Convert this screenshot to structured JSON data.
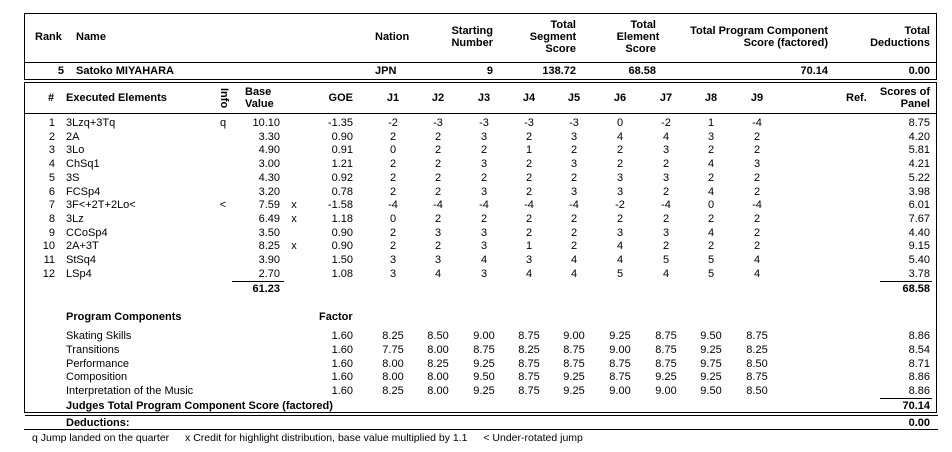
{
  "top_header": {
    "rank": "Rank",
    "name": "Name",
    "nation": "Nation",
    "starting_number": [
      "Starting",
      "Number"
    ],
    "tss": [
      "Total",
      "Segment",
      "Score"
    ],
    "tes": [
      "Total",
      "Element",
      "Score"
    ],
    "pcs": [
      "Total Program Component",
      "Score (factored)"
    ],
    "ded": [
      "Total",
      "Deductions"
    ]
  },
  "skater": {
    "rank": "5",
    "name": "Satoko MIYAHARA",
    "nation": "JPN",
    "starting_number": "9",
    "tss": "138.72",
    "tes": "68.58",
    "pcs": "70.14",
    "ded": "0.00"
  },
  "elements_header": {
    "num": "#",
    "executed": "Executed Elements",
    "info": "Info",
    "base": [
      "Base",
      "Value"
    ],
    "goe": "GOE",
    "judges": [
      "J1",
      "J2",
      "J3",
      "J4",
      "J5",
      "J6",
      "J7",
      "J8",
      "J9"
    ],
    "ref": "Ref.",
    "panel": [
      "Scores of",
      "Panel"
    ]
  },
  "elements": [
    {
      "n": "1",
      "el": "3Lzq+3Tq",
      "info": "q",
      "bv": "10.10",
      "x": "",
      "goe": "-1.35",
      "j": [
        "-2",
        "-3",
        "-3",
        "-3",
        "-3",
        "0",
        "-2",
        "1",
        "-4"
      ],
      "panel": "8.75"
    },
    {
      "n": "2",
      "el": "2A",
      "info": "",
      "bv": "3.30",
      "x": "",
      "goe": "0.90",
      "j": [
        "2",
        "2",
        "3",
        "2",
        "3",
        "4",
        "4",
        "3",
        "2"
      ],
      "panel": "4.20"
    },
    {
      "n": "3",
      "el": "3Lo",
      "info": "",
      "bv": "4.90",
      "x": "",
      "goe": "0.91",
      "j": [
        "0",
        "2",
        "2",
        "1",
        "2",
        "2",
        "3",
        "2",
        "2"
      ],
      "panel": "5.81"
    },
    {
      "n": "4",
      "el": "ChSq1",
      "info": "",
      "bv": "3.00",
      "x": "",
      "goe": "1.21",
      "j": [
        "2",
        "2",
        "3",
        "2",
        "3",
        "2",
        "2",
        "4",
        "3"
      ],
      "panel": "4.21"
    },
    {
      "n": "5",
      "el": "3S",
      "info": "",
      "bv": "4.30",
      "x": "",
      "goe": "0.92",
      "j": [
        "2",
        "2",
        "2",
        "2",
        "2",
        "3",
        "3",
        "2",
        "2"
      ],
      "panel": "5.22"
    },
    {
      "n": "6",
      "el": "FCSp4",
      "info": "",
      "bv": "3.20",
      "x": "",
      "goe": "0.78",
      "j": [
        "2",
        "2",
        "3",
        "2",
        "3",
        "3",
        "2",
        "4",
        "2"
      ],
      "panel": "3.98"
    },
    {
      "n": "7",
      "el": "3F<+2T+2Lo<",
      "info": "<",
      "bv": "7.59",
      "x": "x",
      "goe": "-1.58",
      "j": [
        "-4",
        "-4",
        "-4",
        "-4",
        "-4",
        "-2",
        "-4",
        "0",
        "-4"
      ],
      "panel": "6.01"
    },
    {
      "n": "8",
      "el": "3Lz",
      "info": "",
      "bv": "6.49",
      "x": "x",
      "goe": "1.18",
      "j": [
        "0",
        "2",
        "2",
        "2",
        "2",
        "2",
        "2",
        "2",
        "2"
      ],
      "panel": "7.67"
    },
    {
      "n": "9",
      "el": "CCoSp4",
      "info": "",
      "bv": "3.50",
      "x": "",
      "goe": "0.90",
      "j": [
        "2",
        "3",
        "3",
        "2",
        "2",
        "3",
        "3",
        "4",
        "2"
      ],
      "panel": "4.40"
    },
    {
      "n": "10",
      "el": "2A+3T",
      "info": "",
      "bv": "8.25",
      "x": "x",
      "goe": "0.90",
      "j": [
        "2",
        "2",
        "3",
        "1",
        "2",
        "4",
        "2",
        "2",
        "2"
      ],
      "panel": "9.15"
    },
    {
      "n": "11",
      "el": "StSq4",
      "info": "",
      "bv": "3.90",
      "x": "",
      "goe": "1.50",
      "j": [
        "3",
        "3",
        "4",
        "3",
        "4",
        "4",
        "5",
        "5",
        "4"
      ],
      "panel": "5.40"
    },
    {
      "n": "12",
      "el": "LSp4",
      "info": "",
      "bv": "2.70",
      "x": "",
      "goe": "1.08",
      "j": [
        "3",
        "4",
        "3",
        "4",
        "4",
        "5",
        "4",
        "5",
        "4"
      ],
      "panel": "3.78"
    }
  ],
  "elements_totals": {
    "bv": "61.23",
    "panel": "68.58"
  },
  "pc_header": {
    "title": "Program Components",
    "factor": "Factor"
  },
  "components": [
    {
      "name": "Skating Skills",
      "factor": "1.60",
      "j": [
        "8.25",
        "8.50",
        "9.00",
        "8.75",
        "9.00",
        "9.25",
        "8.75",
        "9.50",
        "8.75"
      ],
      "panel": "8.86"
    },
    {
      "name": "Transitions",
      "factor": "1.60",
      "j": [
        "7.75",
        "8.00",
        "8.75",
        "8.25",
        "8.75",
        "9.00",
        "8.75",
        "9.25",
        "8.25"
      ],
      "panel": "8.54"
    },
    {
      "name": "Performance",
      "factor": "1.60",
      "j": [
        "8.00",
        "8.25",
        "9.25",
        "8.75",
        "8.75",
        "8.75",
        "8.75",
        "9.75",
        "8.50"
      ],
      "panel": "8.71"
    },
    {
      "name": "Composition",
      "factor": "1.60",
      "j": [
        "8.00",
        "8.00",
        "9.50",
        "8.75",
        "9.25",
        "8.75",
        "9.25",
        "9.25",
        "8.75"
      ],
      "panel": "8.86"
    },
    {
      "name": "Interpretation of the Music",
      "factor": "1.60",
      "j": [
        "8.25",
        "8.00",
        "9.25",
        "8.75",
        "9.25",
        "9.00",
        "9.00",
        "9.50",
        "8.50"
      ],
      "panel": "8.86"
    }
  ],
  "pc_total": {
    "label": "Judges Total Program Component Score (factored)",
    "value": "70.14"
  },
  "deductions": {
    "label": "Deductions:",
    "value": "0.00"
  },
  "footnote": {
    "q": "q Jump landed on the quarter",
    "x": "x Credit for highlight distribution, base value multiplied by 1.1",
    "u": "< Under-rotated jump"
  }
}
